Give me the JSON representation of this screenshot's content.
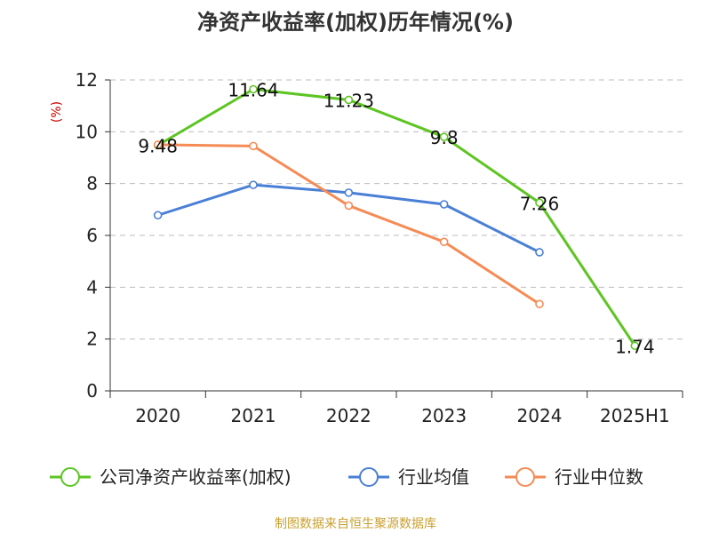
{
  "chart_data": {
    "type": "line",
    "title": "净资产收益率(加权)历年情况(%)",
    "ylabel": "(%)",
    "xlabel": "",
    "categories": [
      "2020",
      "2021",
      "2022",
      "2023",
      "2024",
      "2025H1"
    ],
    "ylim": [
      0,
      12
    ],
    "yticks": [
      0,
      2,
      4,
      6,
      8,
      10,
      12
    ],
    "grid": true,
    "legend_position": "bottom",
    "series": [
      {
        "name": "公司净资产收益率(加权)",
        "color": "#5dc522",
        "values": [
          9.48,
          11.64,
          11.23,
          9.8,
          7.26,
          1.74
        ],
        "labels": [
          "9.48",
          "11.64",
          "11.23",
          "9.8",
          "7.26",
          "1.74"
        ]
      },
      {
        "name": "行业均值",
        "color": "#4a7fd6",
        "values": [
          6.78,
          7.95,
          7.65,
          7.2,
          5.35,
          null
        ]
      },
      {
        "name": "行业中位数",
        "color": "#f58b55",
        "values": [
          9.5,
          9.45,
          7.15,
          5.75,
          3.35,
          null
        ]
      }
    ]
  },
  "ylabel_color": "#d00000",
  "source": {
    "text": "制图数据来自恒生聚源数据库",
    "color": "#c8a032"
  }
}
